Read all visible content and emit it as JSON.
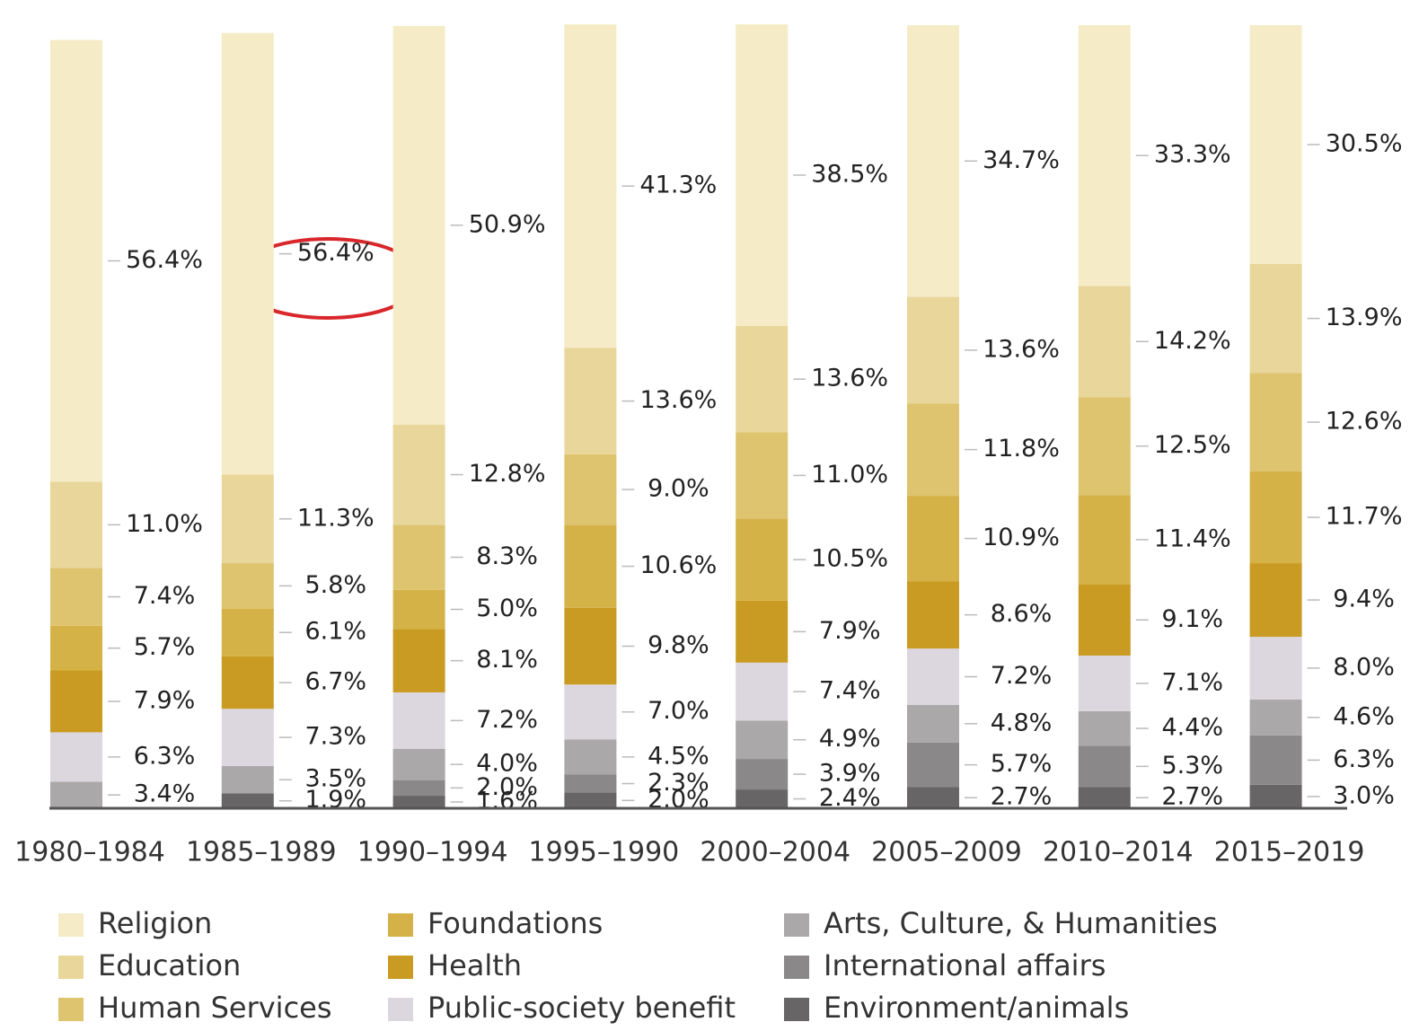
{
  "chart_data": {
    "type": "stacked_bar",
    "categories": [
      "1980–1984",
      "1985–1989",
      "1990–1994",
      "1995–1990",
      "2000–2004",
      "2005–2009",
      "2010–2014",
      "2015–2019"
    ],
    "ylim": [
      0,
      100
    ],
    "series": [
      {
        "name": "Religion",
        "color": "#f5ebc6",
        "values": [
          56.4,
          56.4,
          50.9,
          41.3,
          38.5,
          34.7,
          33.3,
          30.5
        ],
        "value_labels": [
          "56.4%",
          "56.4%",
          "50.9%",
          "41.3%",
          "38.5%",
          "34.7%",
          "33.3%",
          "30.5%"
        ]
      },
      {
        "name": "Education",
        "color": "#e9d69a",
        "values": [
          11.0,
          11.3,
          12.8,
          13.6,
          13.6,
          13.6,
          14.2,
          13.9
        ],
        "value_labels": [
          "11.0%",
          "11.3%",
          "12.8%",
          "13.6%",
          "13.6%",
          "13.6%",
          "14.2%",
          "13.9%"
        ]
      },
      {
        "name": "Human Services",
        "color": "#dec46f",
        "values": [
          7.4,
          5.8,
          8.3,
          9.0,
          11.0,
          11.8,
          12.5,
          12.6
        ],
        "value_labels": [
          "7.4%",
          "5.8%",
          "8.3%",
          "9.0%",
          "11.0%",
          "11.8%",
          "12.5%",
          "12.6%"
        ]
      },
      {
        "name": "Foundations",
        "color": "#d5b247",
        "values": [
          5.7,
          6.1,
          5.0,
          10.6,
          10.5,
          10.9,
          11.4,
          11.7
        ],
        "value_labels": [
          "5.7%",
          "6.1%",
          "5.0%",
          "10.6%",
          "10.5%",
          "10.9%",
          "11.4%",
          "11.7%"
        ]
      },
      {
        "name": "Health",
        "color": "#c99b22",
        "values": [
          7.9,
          6.7,
          8.1,
          9.8,
          7.9,
          8.6,
          9.1,
          9.4
        ],
        "value_labels": [
          "7.9%",
          "6.7%",
          "8.1%",
          "9.8%",
          "7.9%",
          "8.6%",
          "9.1%",
          "9.4%"
        ]
      },
      {
        "name": "Public-society benefit",
        "color": "#dcd6de",
        "values": [
          6.3,
          7.3,
          7.2,
          7.0,
          7.4,
          7.2,
          7.1,
          8.0
        ],
        "value_labels": [
          "6.3%",
          "7.3%",
          "7.2%",
          "7.0%",
          "7.4%",
          "7.2%",
          "7.1%",
          "8.0%"
        ]
      },
      {
        "name": "Arts, Culture, & Humanities",
        "color": "#aaa8a8",
        "values": [
          3.4,
          3.5,
          4.0,
          4.5,
          4.9,
          4.8,
          4.4,
          4.6
        ],
        "value_labels": [
          "3.4%",
          "3.5%",
          "4.0%",
          "4.5%",
          "4.9%",
          "4.8%",
          "4.4%",
          "4.6%"
        ]
      },
      {
        "name": "International affairs",
        "color": "#8a8888",
        "values": [
          null,
          null,
          2.0,
          2.3,
          3.9,
          5.7,
          5.3,
          6.3
        ],
        "value_labels": [
          null,
          null,
          "2.0%",
          "2.3%",
          "3.9%",
          "5.7%",
          "5.3%",
          "6.3%"
        ]
      },
      {
        "name": "Environment/animals",
        "color": "#676565",
        "values": [
          null,
          1.9,
          1.6,
          2.0,
          2.4,
          2.7,
          2.7,
          3.0
        ],
        "value_labels": [
          null,
          "1.9%",
          "1.6%",
          "2.0%",
          "2.4%",
          "2.7%",
          "2.7%",
          "3.0%"
        ]
      }
    ]
  }
}
